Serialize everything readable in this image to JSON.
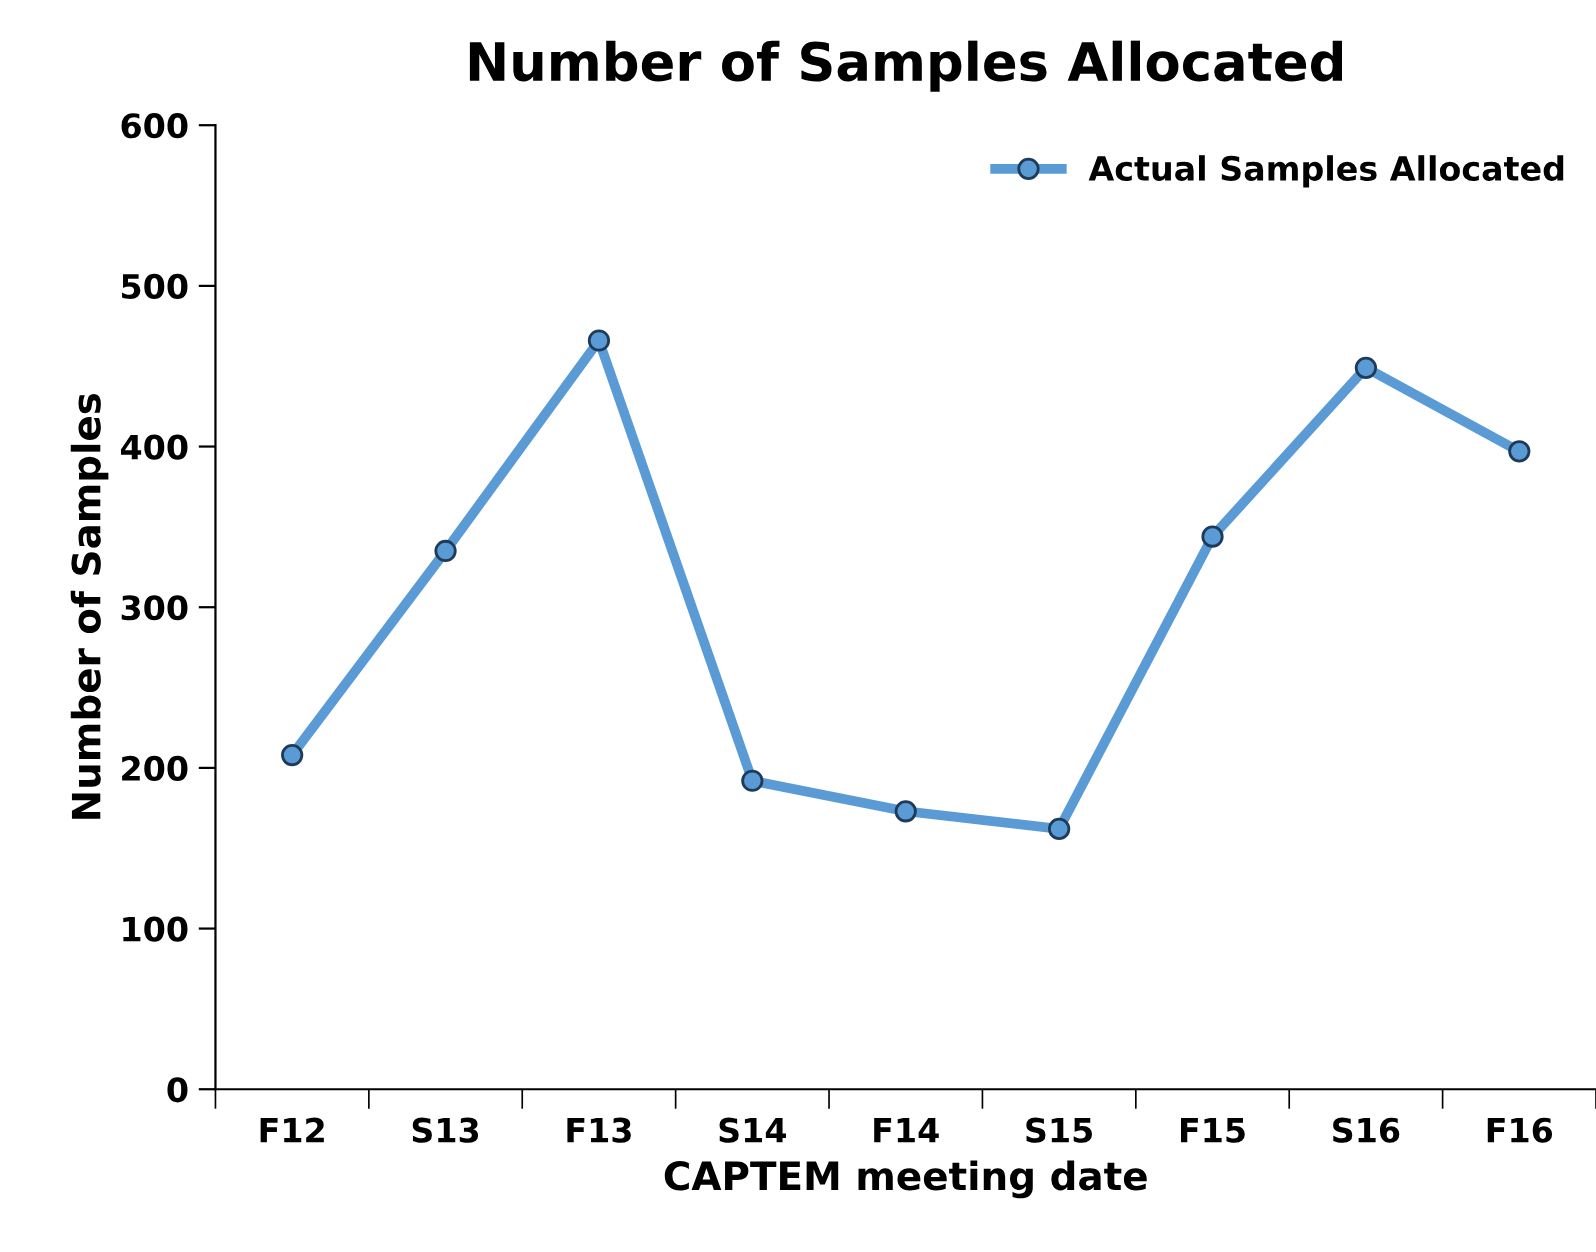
{
  "chart_data": {
    "type": "line",
    "title": "Number of Samples Allocated",
    "xlabel": "CAPTEM meeting date",
    "ylabel": "Number of Samples",
    "categories": [
      "F12",
      "S13",
      "F13",
      "S14",
      "F14",
      "S15",
      "F15",
      "S16",
      "F16"
    ],
    "series": [
      {
        "name": "Actual Samples Allocated",
        "color": "#5b9bd5",
        "values": [
          208,
          335,
          466,
          192,
          173,
          162,
          344,
          449,
          397
        ]
      }
    ],
    "ylim": [
      0,
      600
    ],
    "yticks": [
      0,
      100,
      200,
      300,
      400,
      500,
      600
    ],
    "grid": false,
    "legend": "top right",
    "marker": "circle",
    "line_style": "solid"
  }
}
